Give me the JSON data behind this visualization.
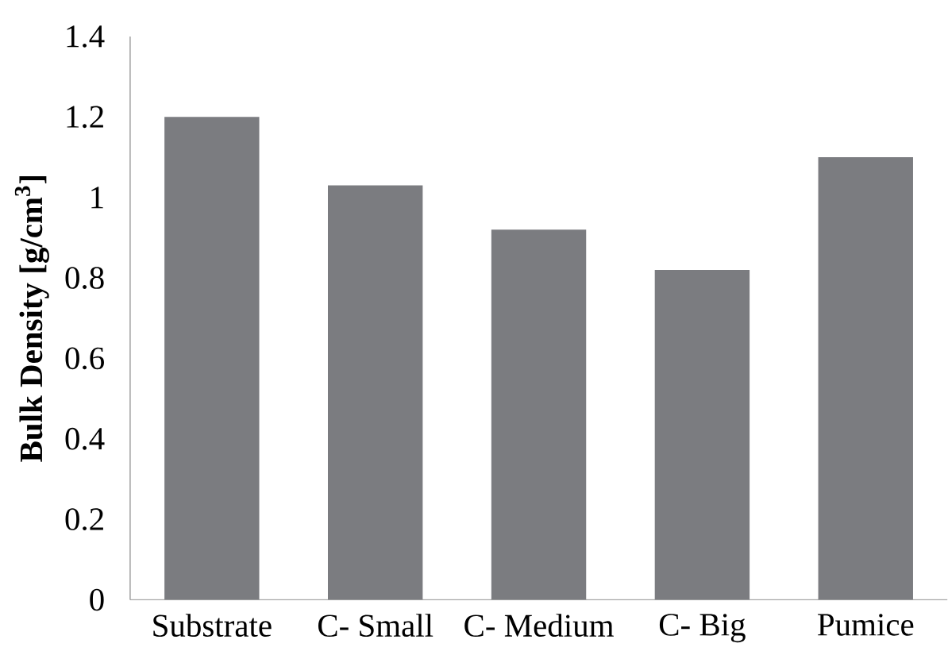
{
  "chart_data": {
    "type": "bar",
    "ylabel": "Bulk Density [g/cm$^{3}$]",
    "categories": [
      "Substrate",
      "C- Small",
      "C- Medium",
      "C- Big",
      "Pumice"
    ],
    "values": [
      1.2,
      1.03,
      0.92,
      0.82,
      1.1
    ],
    "color": "#7b7c80",
    "ylim": [
      0,
      1.4
    ],
    "yticks": [
      0,
      0.2,
      0.4,
      0.6,
      0.8,
      1,
      1.2,
      1.4
    ],
    "grid": false
  }
}
